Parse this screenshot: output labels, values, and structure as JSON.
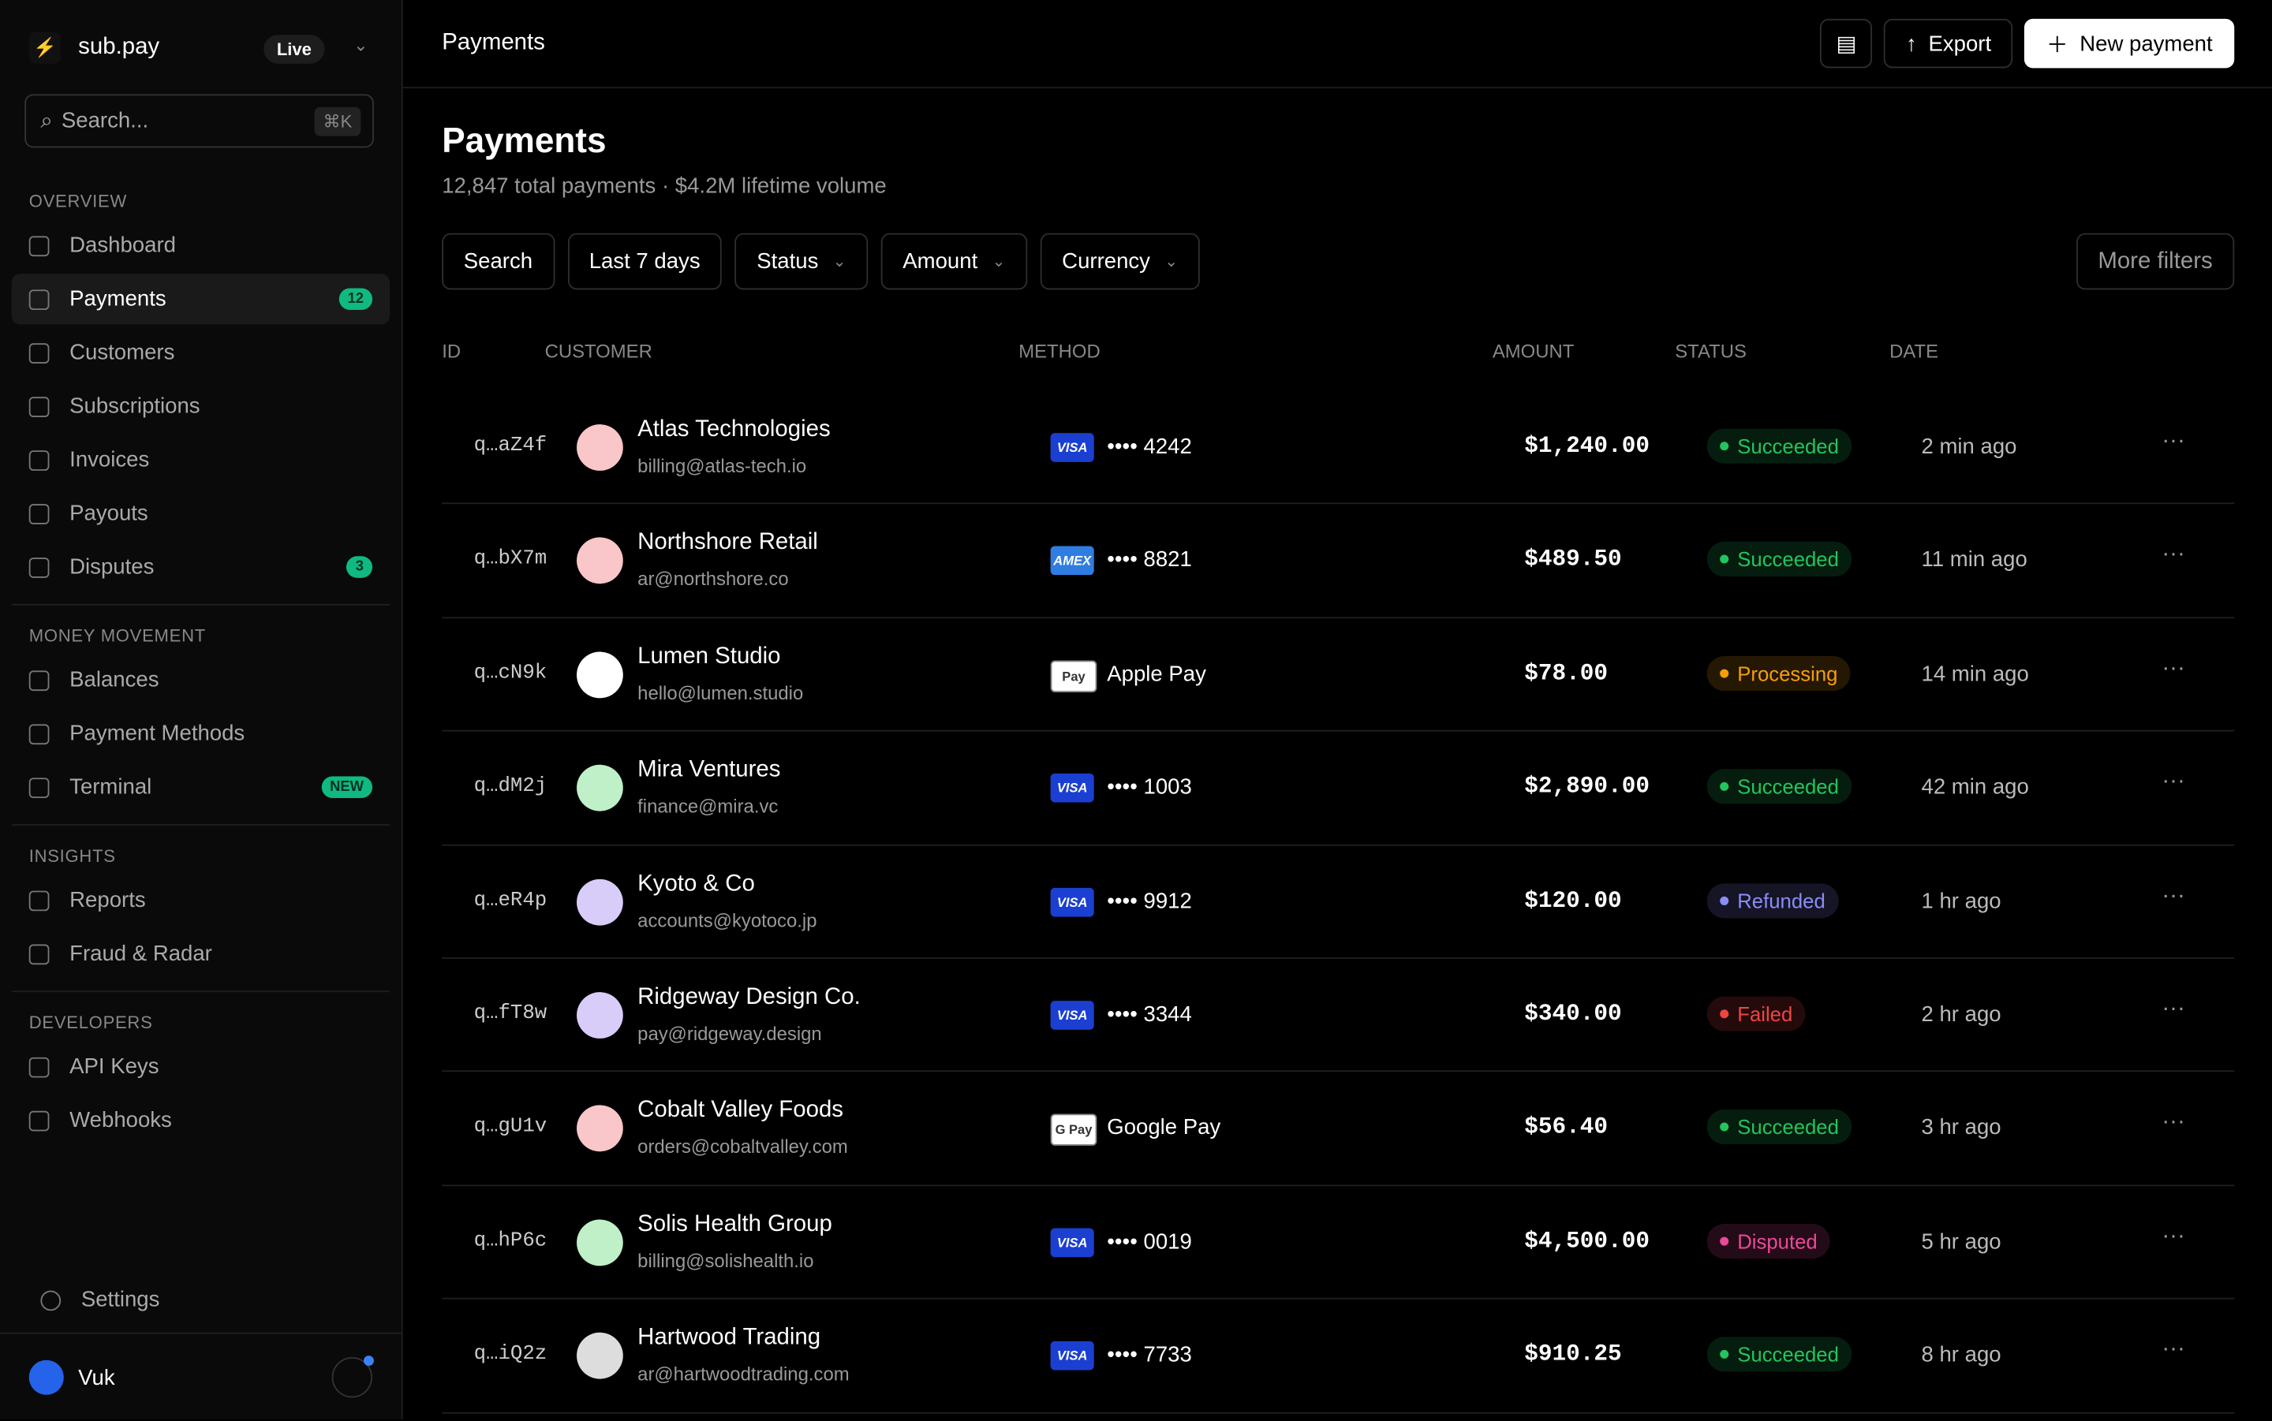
{
  "sidebar": {
    "brand": "sub.pay",
    "env": "Live",
    "search_placeholder": "Search...",
    "shortcut": "⌘K",
    "sections": [
      {
        "title": "OVERVIEW",
        "items": [
          {
            "label": "Dashboard"
          },
          {
            "label": "Payments",
            "badge": "12"
          },
          {
            "label": "Customers"
          },
          {
            "label": "Subscriptions"
          },
          {
            "label": "Invoices"
          },
          {
            "label": "Payouts"
          },
          {
            "label": "Disputes",
            "badge": "3"
          }
        ]
      },
      {
        "title": "MONEY MOVEMENT",
        "items": [
          {
            "label": "Balances"
          },
          {
            "label": "Payment Methods"
          },
          {
            "label": "Terminal",
            "badge": "NEW"
          }
        ]
      },
      {
        "title": "INSIGHTS",
        "items": [
          {
            "label": "Reports"
          },
          {
            "label": "Fraud & Radar"
          }
        ]
      },
      {
        "title": "DEVELOPERS",
        "items": [
          {
            "label": "API Keys"
          },
          {
            "label": "Webhooks"
          }
        ]
      }
    ],
    "settings": "Settings",
    "user": "Vuk"
  },
  "topbar": {
    "title": "Payments",
    "export": "Export",
    "new_payment": "New payment"
  },
  "header": {
    "title": "Payments",
    "subtitle": "12,847 total payments · $4.2M lifetime volume"
  },
  "filters": {
    "items": [
      "Search",
      "Last 7 days",
      "Status",
      "Amount",
      "Currency"
    ],
    "more": "More filters"
  },
  "table": {
    "columns": [
      "ID",
      "CUSTOMER",
      "METHOD",
      "AMOUNT",
      "STATUS",
      "DATE"
    ],
    "rows": [
      {
        "id": "q…aZ4f",
        "customer": "Atlas Technologies",
        "email": "billing@atlas-tech.io",
        "brand": "VISA",
        "method": "•••• 4242",
        "amount": "$1,240.00",
        "status": "Succeeded",
        "status_color": "#22c55e",
        "date": "2 min ago"
      },
      {
        "id": "q…bX7m",
        "customer": "Northshore Retail",
        "email": "ar@northshore.co",
        "brand": "AMEX",
        "method": "•••• 8821",
        "amount": "$489.50",
        "status": "Succeeded",
        "status_color": "#22c55e",
        "date": "11 min ago"
      },
      {
        "id": "q…cN9k",
        "customer": "Lumen Studio",
        "email": "hello@lumen.studio",
        "brand": "Pay",
        "method": "Apple Pay",
        "amount": "$78.00",
        "status": "Processing",
        "status_color": "#f59e0b",
        "date": "14 min ago"
      },
      {
        "id": "q…dM2j",
        "customer": "Mira Ventures",
        "email": "finance@mira.vc",
        "brand": "VISA",
        "method": "•••• 1003",
        "amount": "$2,890.00",
        "status": "Succeeded",
        "status_color": "#22c55e",
        "date": "42 min ago"
      },
      {
        "id": "q…eR4p",
        "customer": "Kyoto & Co",
        "email": "accounts@kyotoco.jp",
        "brand": "VISA",
        "method": "•••• 9912",
        "amount": "$120.00",
        "status": "Refunded",
        "status_color": "#8b8cf8",
        "date": "1 hr ago"
      },
      {
        "id": "q…fT8w",
        "customer": "Ridgeway Design Co.",
        "email": "pay@ridgeway.design",
        "brand": "VISA",
        "method": "•••• 3344",
        "amount": "$340.00",
        "status": "Failed",
        "status_color": "#ef4444",
        "date": "2 hr ago"
      },
      {
        "id": "q…gU1v",
        "customer": "Cobalt Valley Foods",
        "email": "orders@cobaltvalley.com",
        "brand": "G Pay",
        "method": "Google Pay",
        "amount": "$56.40",
        "status": "Succeeded",
        "status_color": "#22c55e",
        "date": "3 hr ago"
      },
      {
        "id": "q…hP6c",
        "customer": "Solis Health Group",
        "email": "billing@solishealth.io",
        "brand": "VISA",
        "method": "•••• 0019",
        "amount": "$4,500.00",
        "status": "Disputed",
        "status_color": "#ec4899",
        "date": "5 hr ago"
      },
      {
        "id": "q…iQ2z",
        "customer": "Hartwood Trading",
        "email": "ar@hartwoodtrading.com",
        "brand": "VISA",
        "method": "•••• 7733",
        "amount": "$910.25",
        "status": "Succeeded",
        "status_color": "#22c55e",
        "date": "8 hr ago"
      }
    ]
  }
}
